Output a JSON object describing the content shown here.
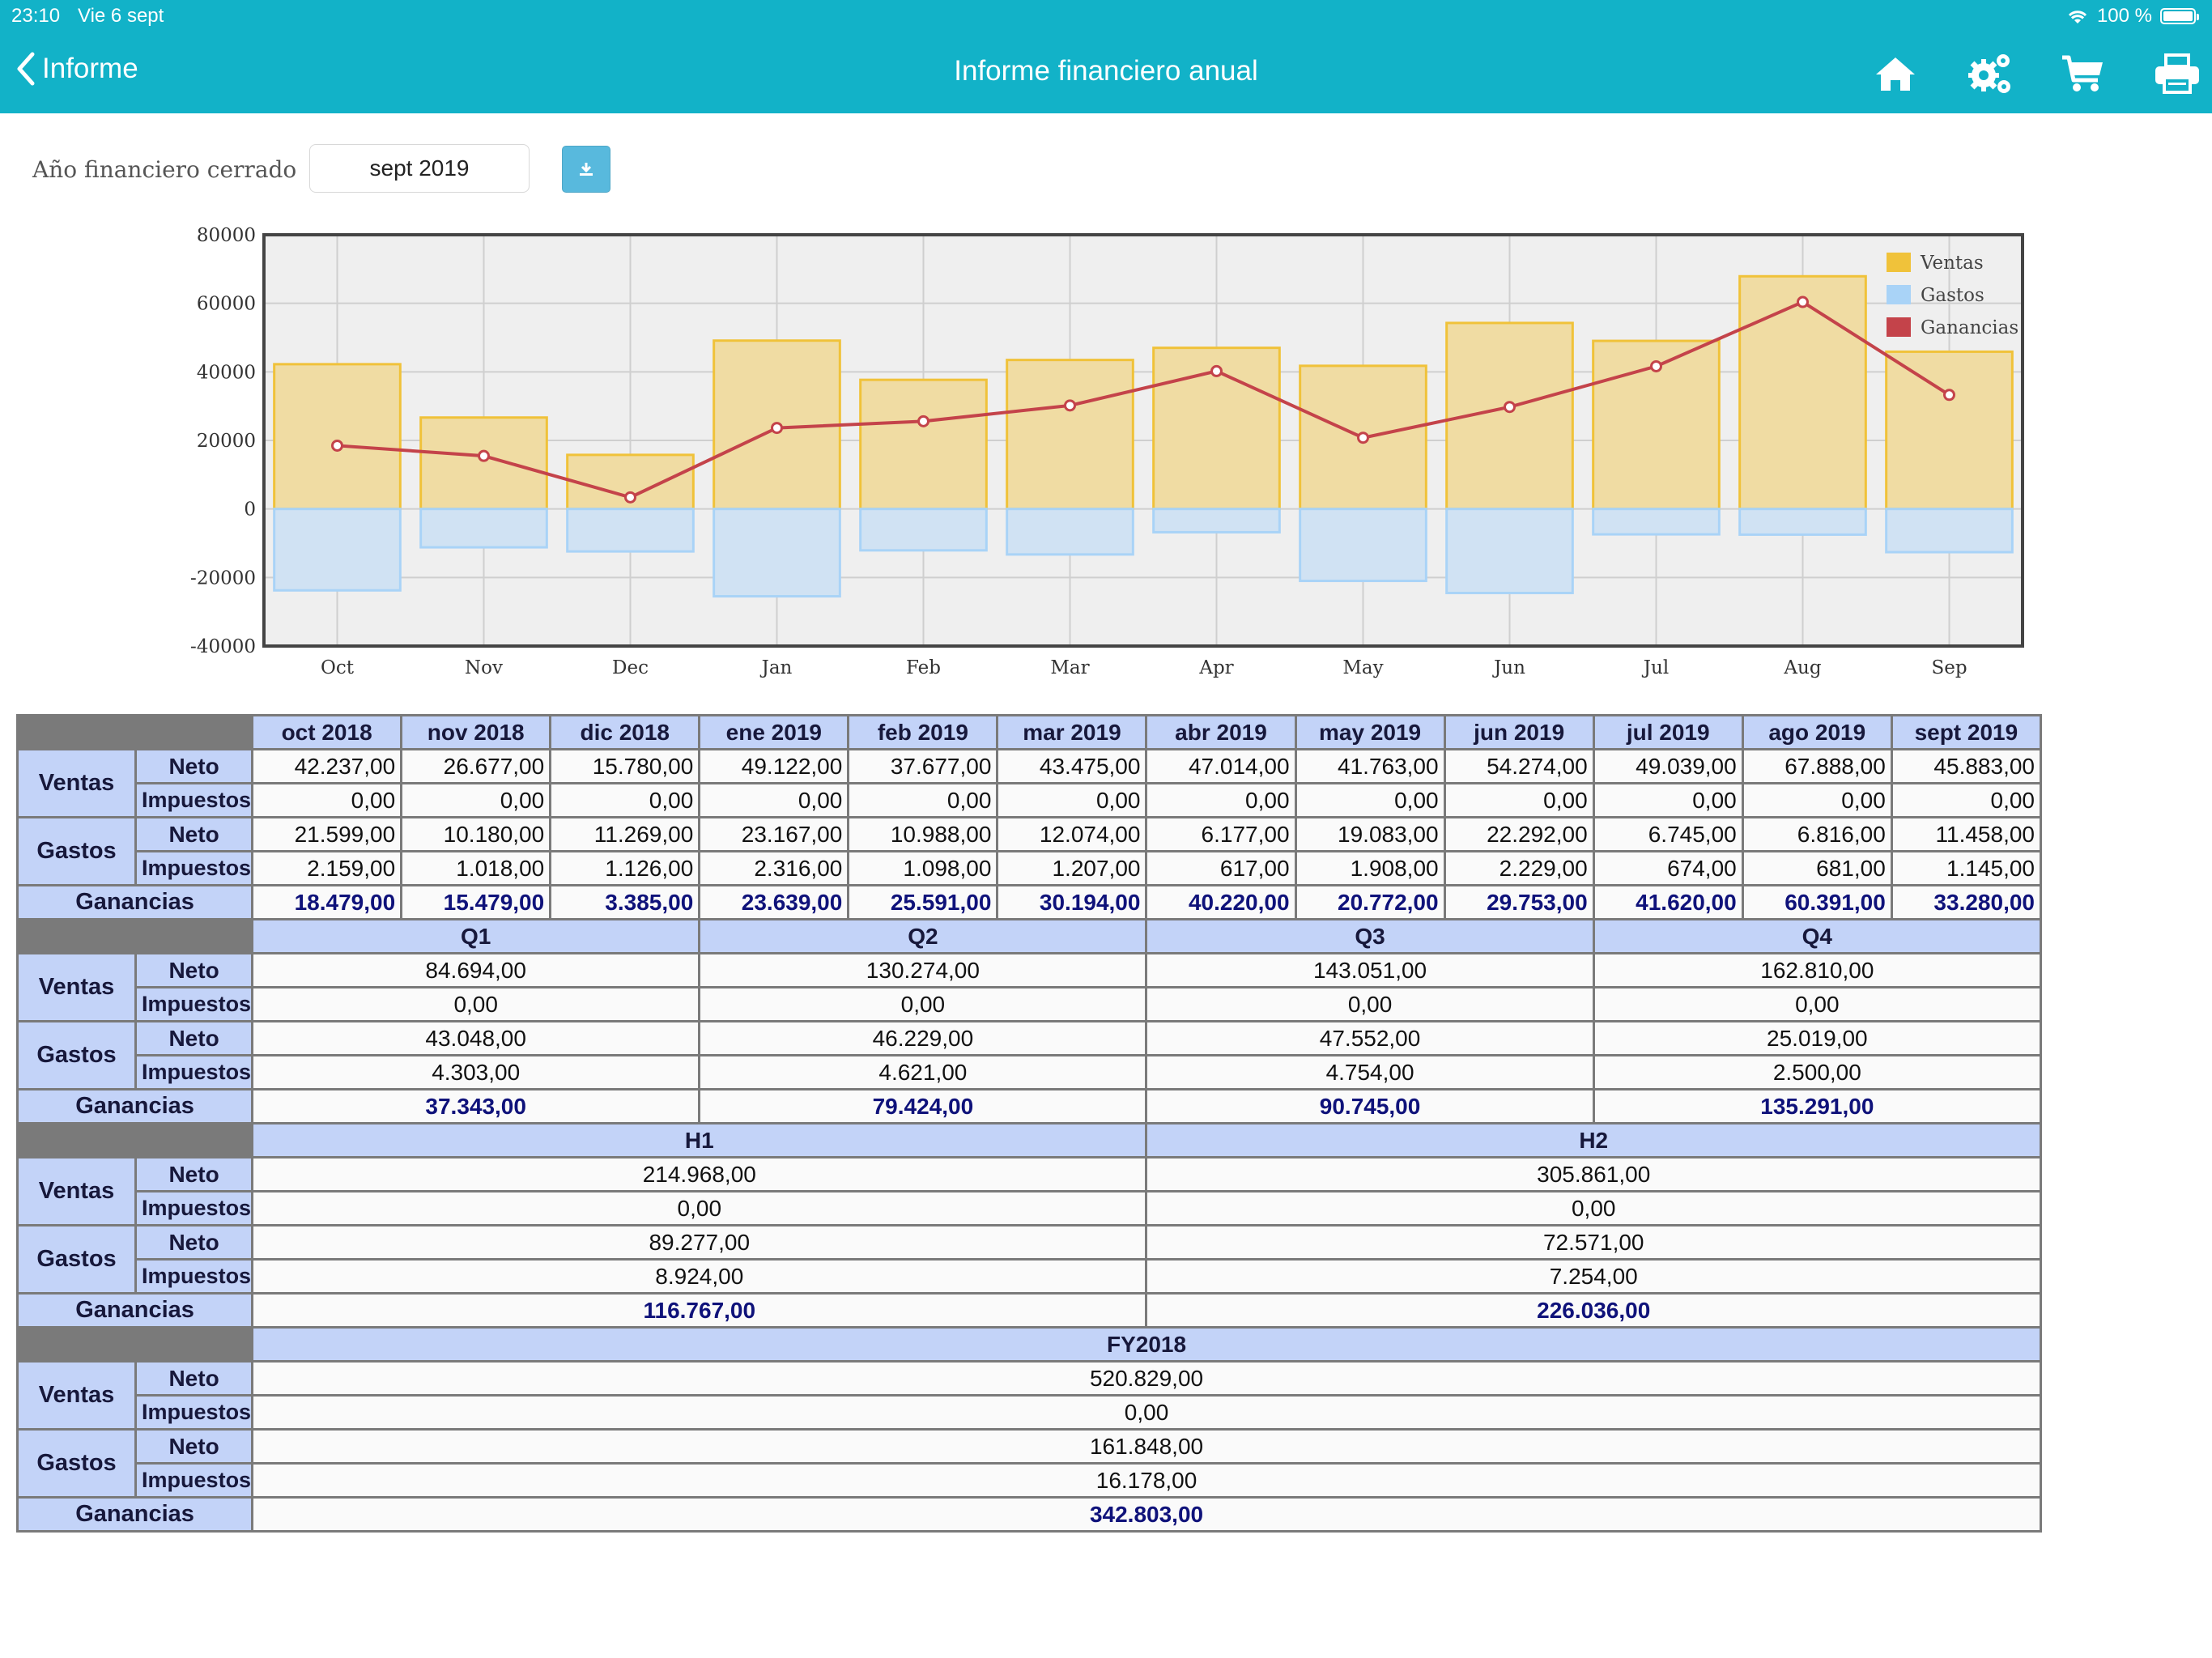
{
  "status_bar": {
    "time": "23:10",
    "date": "Vie 6 sept",
    "battery_text": "100 %",
    "battery_level_percent": 100
  },
  "nav": {
    "back_label": "Informe",
    "title": "Informe financiero anual",
    "icons": [
      "home-icon",
      "settings-icon",
      "cart-icon",
      "print-icon"
    ]
  },
  "controls": {
    "year_label": "Año financiero cerrado",
    "year_value": "sept 2019",
    "download_icon": "download-icon"
  },
  "colors": {
    "header_bar": "#12b2c8",
    "ventas_bar": "#f0dca3",
    "ventas_border": "#f0c23a",
    "gastos_bar": "#d0e2f3",
    "gastos_border": "#a9d3f7",
    "ganancias_line": "#c4434a",
    "table_header": "#c3d3f8",
    "profit_text": "#0f127a"
  },
  "chart_data": {
    "type": "bar",
    "categories": [
      "Oct",
      "Nov",
      "Dec",
      "Jan",
      "Feb",
      "Mar",
      "Apr",
      "May",
      "Jun",
      "Jul",
      "Aug",
      "Sep"
    ],
    "series": [
      {
        "name": "Ventas",
        "type": "bar",
        "values": [
          42237,
          26677,
          15780,
          49122,
          37677,
          43475,
          47014,
          41763,
          54274,
          49039,
          67888,
          45883
        ]
      },
      {
        "name": "Gastos",
        "type": "bar",
        "values": [
          -23758,
          -11198,
          -12395,
          -25483,
          -12086,
          -13281,
          -6794,
          -20991,
          -24521,
          -7419,
          -7497,
          -12603
        ]
      },
      {
        "name": "Ganancias",
        "type": "line",
        "values": [
          18479,
          15479,
          3385,
          23639,
          25591,
          30194,
          40220,
          20772,
          29753,
          41620,
          60391,
          33280
        ]
      }
    ],
    "ylim": [
      -40000,
      80000
    ],
    "yticks": [
      80000,
      60000,
      40000,
      20000,
      0,
      -20000,
      -40000
    ],
    "grid": true,
    "legend_position": "top-right"
  },
  "labels": {
    "ventas": "Ventas",
    "gastos": "Gastos",
    "ganancias": "Ganancias",
    "neto": "Neto",
    "impuestos": "Impuestos"
  },
  "monthly": {
    "headers": [
      "oct 2018",
      "nov 2018",
      "dic 2018",
      "ene 2019",
      "feb 2019",
      "mar 2019",
      "abr 2019",
      "may 2019",
      "jun 2019",
      "jul 2019",
      "ago 2019",
      "sept 2019"
    ],
    "ventas_neto": [
      "42.237,00",
      "26.677,00",
      "15.780,00",
      "49.122,00",
      "37.677,00",
      "43.475,00",
      "47.014,00",
      "41.763,00",
      "54.274,00",
      "49.039,00",
      "67.888,00",
      "45.883,00"
    ],
    "ventas_impuestos": [
      "0,00",
      "0,00",
      "0,00",
      "0,00",
      "0,00",
      "0,00",
      "0,00",
      "0,00",
      "0,00",
      "0,00",
      "0,00",
      "0,00"
    ],
    "gastos_neto": [
      "21.599,00",
      "10.180,00",
      "11.269,00",
      "23.167,00",
      "10.988,00",
      "12.074,00",
      "6.177,00",
      "19.083,00",
      "22.292,00",
      "6.745,00",
      "6.816,00",
      "11.458,00"
    ],
    "gastos_impuestos": [
      "2.159,00",
      "1.018,00",
      "1.126,00",
      "2.316,00",
      "1.098,00",
      "1.207,00",
      "617,00",
      "1.908,00",
      "2.229,00",
      "674,00",
      "681,00",
      "1.145,00"
    ],
    "ganancias": [
      "18.479,00",
      "15.479,00",
      "3.385,00",
      "23.639,00",
      "25.591,00",
      "30.194,00",
      "40.220,00",
      "20.772,00",
      "29.753,00",
      "41.620,00",
      "60.391,00",
      "33.280,00"
    ]
  },
  "quarterly": {
    "headers": [
      "Q1",
      "Q2",
      "Q3",
      "Q4"
    ],
    "ventas_neto": [
      "84.694,00",
      "130.274,00",
      "143.051,00",
      "162.810,00"
    ],
    "ventas_impuestos": [
      "0,00",
      "0,00",
      "0,00",
      "0,00"
    ],
    "gastos_neto": [
      "43.048,00",
      "46.229,00",
      "47.552,00",
      "25.019,00"
    ],
    "gastos_impuestos": [
      "4.303,00",
      "4.621,00",
      "4.754,00",
      "2.500,00"
    ],
    "ganancias": [
      "37.343,00",
      "79.424,00",
      "90.745,00",
      "135.291,00"
    ]
  },
  "halfyear": {
    "headers": [
      "H1",
      "H2"
    ],
    "ventas_neto": [
      "214.968,00",
      "305.861,00"
    ],
    "ventas_impuestos": [
      "0,00",
      "0,00"
    ],
    "gastos_neto": [
      "89.277,00",
      "72.571,00"
    ],
    "gastos_impuestos": [
      "8.924,00",
      "7.254,00"
    ],
    "ganancias": [
      "116.767,00",
      "226.036,00"
    ]
  },
  "fiscal_year": {
    "headers": [
      "FY2018"
    ],
    "ventas_neto": [
      "520.829,00"
    ],
    "ventas_impuestos": [
      "0,00"
    ],
    "gastos_neto": [
      "161.848,00"
    ],
    "gastos_impuestos": [
      "16.178,00"
    ],
    "ganancias": [
      "342.803,00"
    ]
  }
}
